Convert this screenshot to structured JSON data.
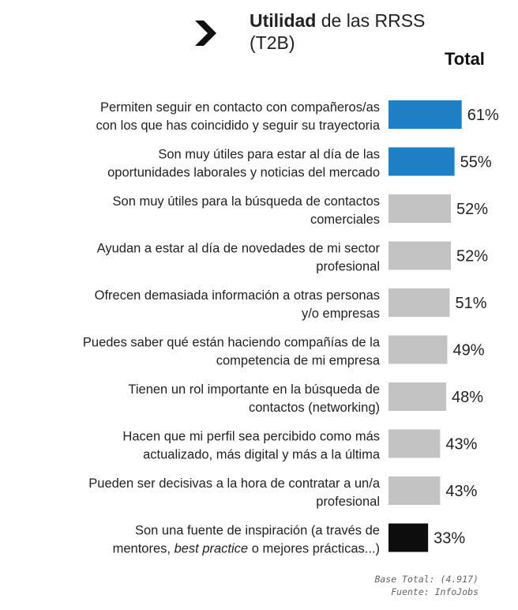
{
  "header": {
    "title_bold": "Utilidad",
    "title_rest": " de las RRSS",
    "title_line2": "(T2B)",
    "column_label": "Total"
  },
  "colors": {
    "highlight": "#1f7fc4",
    "neutral": "#c3c3c3",
    "dark": "#0d0d0d"
  },
  "chart_data": {
    "type": "bar",
    "orientation": "horizontal",
    "title": "Utilidad de las RRSS (T2B)",
    "value_unit": "%",
    "column_label": "Total",
    "categories": [
      {
        "lines": [
          "Permiten seguir en contacto con compañeros/as",
          "con los que has coincidido y seguir su trayectoria"
        ]
      },
      {
        "lines": [
          "Son muy útiles para estar al día de las",
          "oportunidades laborales y noticias del mercado"
        ]
      },
      {
        "lines": [
          "Son muy útiles para la búsqueda de contactos",
          "comerciales"
        ]
      },
      {
        "lines": [
          "Ayudan a estar al día de novedades de mi sector",
          "profesional"
        ]
      },
      {
        "lines": [
          "Ofrecen demasiada información a otras personas",
          "y/o empresas"
        ]
      },
      {
        "lines": [
          "Puedes saber qué están haciendo compañías de la",
          "competencia de mi empresa"
        ]
      },
      {
        "lines": [
          "Tienen un rol importante en la búsqueda de",
          "contactos (networking)"
        ]
      },
      {
        "lines": [
          "Hacen que mi perfil sea percibido como más",
          "actualizado, más digital y más a la última"
        ]
      },
      {
        "lines": [
          "Pueden ser decisivas a la hora de contratar a un/a",
          "profesional"
        ]
      },
      {
        "lines": [
          "Son una fuente de inspiración (a través de",
          "mentores, |best practice| o mejores prácticas...)"
        ]
      }
    ],
    "values": [
      61,
      55,
      52,
      52,
      51,
      49,
      48,
      43,
      43,
      33
    ],
    "value_labels": [
      "61%",
      "55%",
      "52%",
      "52%",
      "51%",
      "49%",
      "48%",
      "43%",
      "43%",
      "33%"
    ],
    "bar_colors": [
      "highlight",
      "highlight",
      "neutral",
      "neutral",
      "neutral",
      "neutral",
      "neutral",
      "neutral",
      "neutral",
      "dark"
    ]
  },
  "footer": {
    "line1": "Base Total: (4.917)",
    "line2": "Fuente: InfoJobs"
  }
}
